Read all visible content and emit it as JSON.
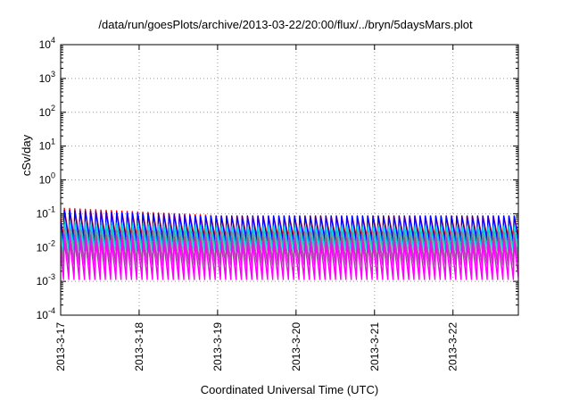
{
  "chart_data": {
    "type": "line",
    "title": "/data/run/goesPlots/archive/2013-03-22/20:00/flux/../bryn/5daysMars.plot",
    "xlabel": "Coordinated Universal Time (UTC)",
    "ylabel": "cSv/day",
    "yscale": "log",
    "ylim": [
      0.0001,
      10000
    ],
    "xlim": [
      "2013-3-17",
      "2013-3-22 20:00"
    ],
    "x_ticks": [
      "2013-3-17",
      "2013-3-18",
      "2013-3-19",
      "2013-3-20",
      "2013-3-21",
      "2013-3-22"
    ],
    "y_ticks": [
      {
        "base": "10",
        "exp": "-4"
      },
      {
        "base": "10",
        "exp": "-3"
      },
      {
        "base": "10",
        "exp": "-2"
      },
      {
        "base": "10",
        "exp": "-1"
      },
      {
        "base": "10",
        "exp": "0"
      },
      {
        "base": "10",
        "exp": "1"
      },
      {
        "base": "10",
        "exp": "2"
      },
      {
        "base": "10",
        "exp": "3"
      },
      {
        "base": "10",
        "exp": "4"
      }
    ],
    "grid": true,
    "sawtooth_period_hours": 1.6,
    "series": [
      {
        "color": "#ff0000",
        "peak": [
          0.15,
          0.09
        ],
        "trough": 0.02
      },
      {
        "color": "#0000ff",
        "peak": [
          0.13,
          0.085
        ],
        "trough": 0.015
      },
      {
        "color": "#00aaaa",
        "peak": [
          0.06,
          0.045
        ],
        "trough": 0.01
      },
      {
        "color": "#00ddee",
        "peak": [
          0.05,
          0.04
        ],
        "trough": 0.008
      },
      {
        "color": "#888888",
        "peak": [
          0.035,
          0.03
        ],
        "trough": 0.004
      },
      {
        "color": "#aa44aa",
        "peak": [
          0.025,
          0.02
        ],
        "trough": 0.003
      },
      {
        "color": "#ff00ff",
        "peak": [
          0.02,
          0.015
        ],
        "trough": 0.0011
      },
      {
        "color": "#ff00ff",
        "peak": [
          0.015,
          0.012
        ],
        "trough": 0.0015
      }
    ]
  }
}
